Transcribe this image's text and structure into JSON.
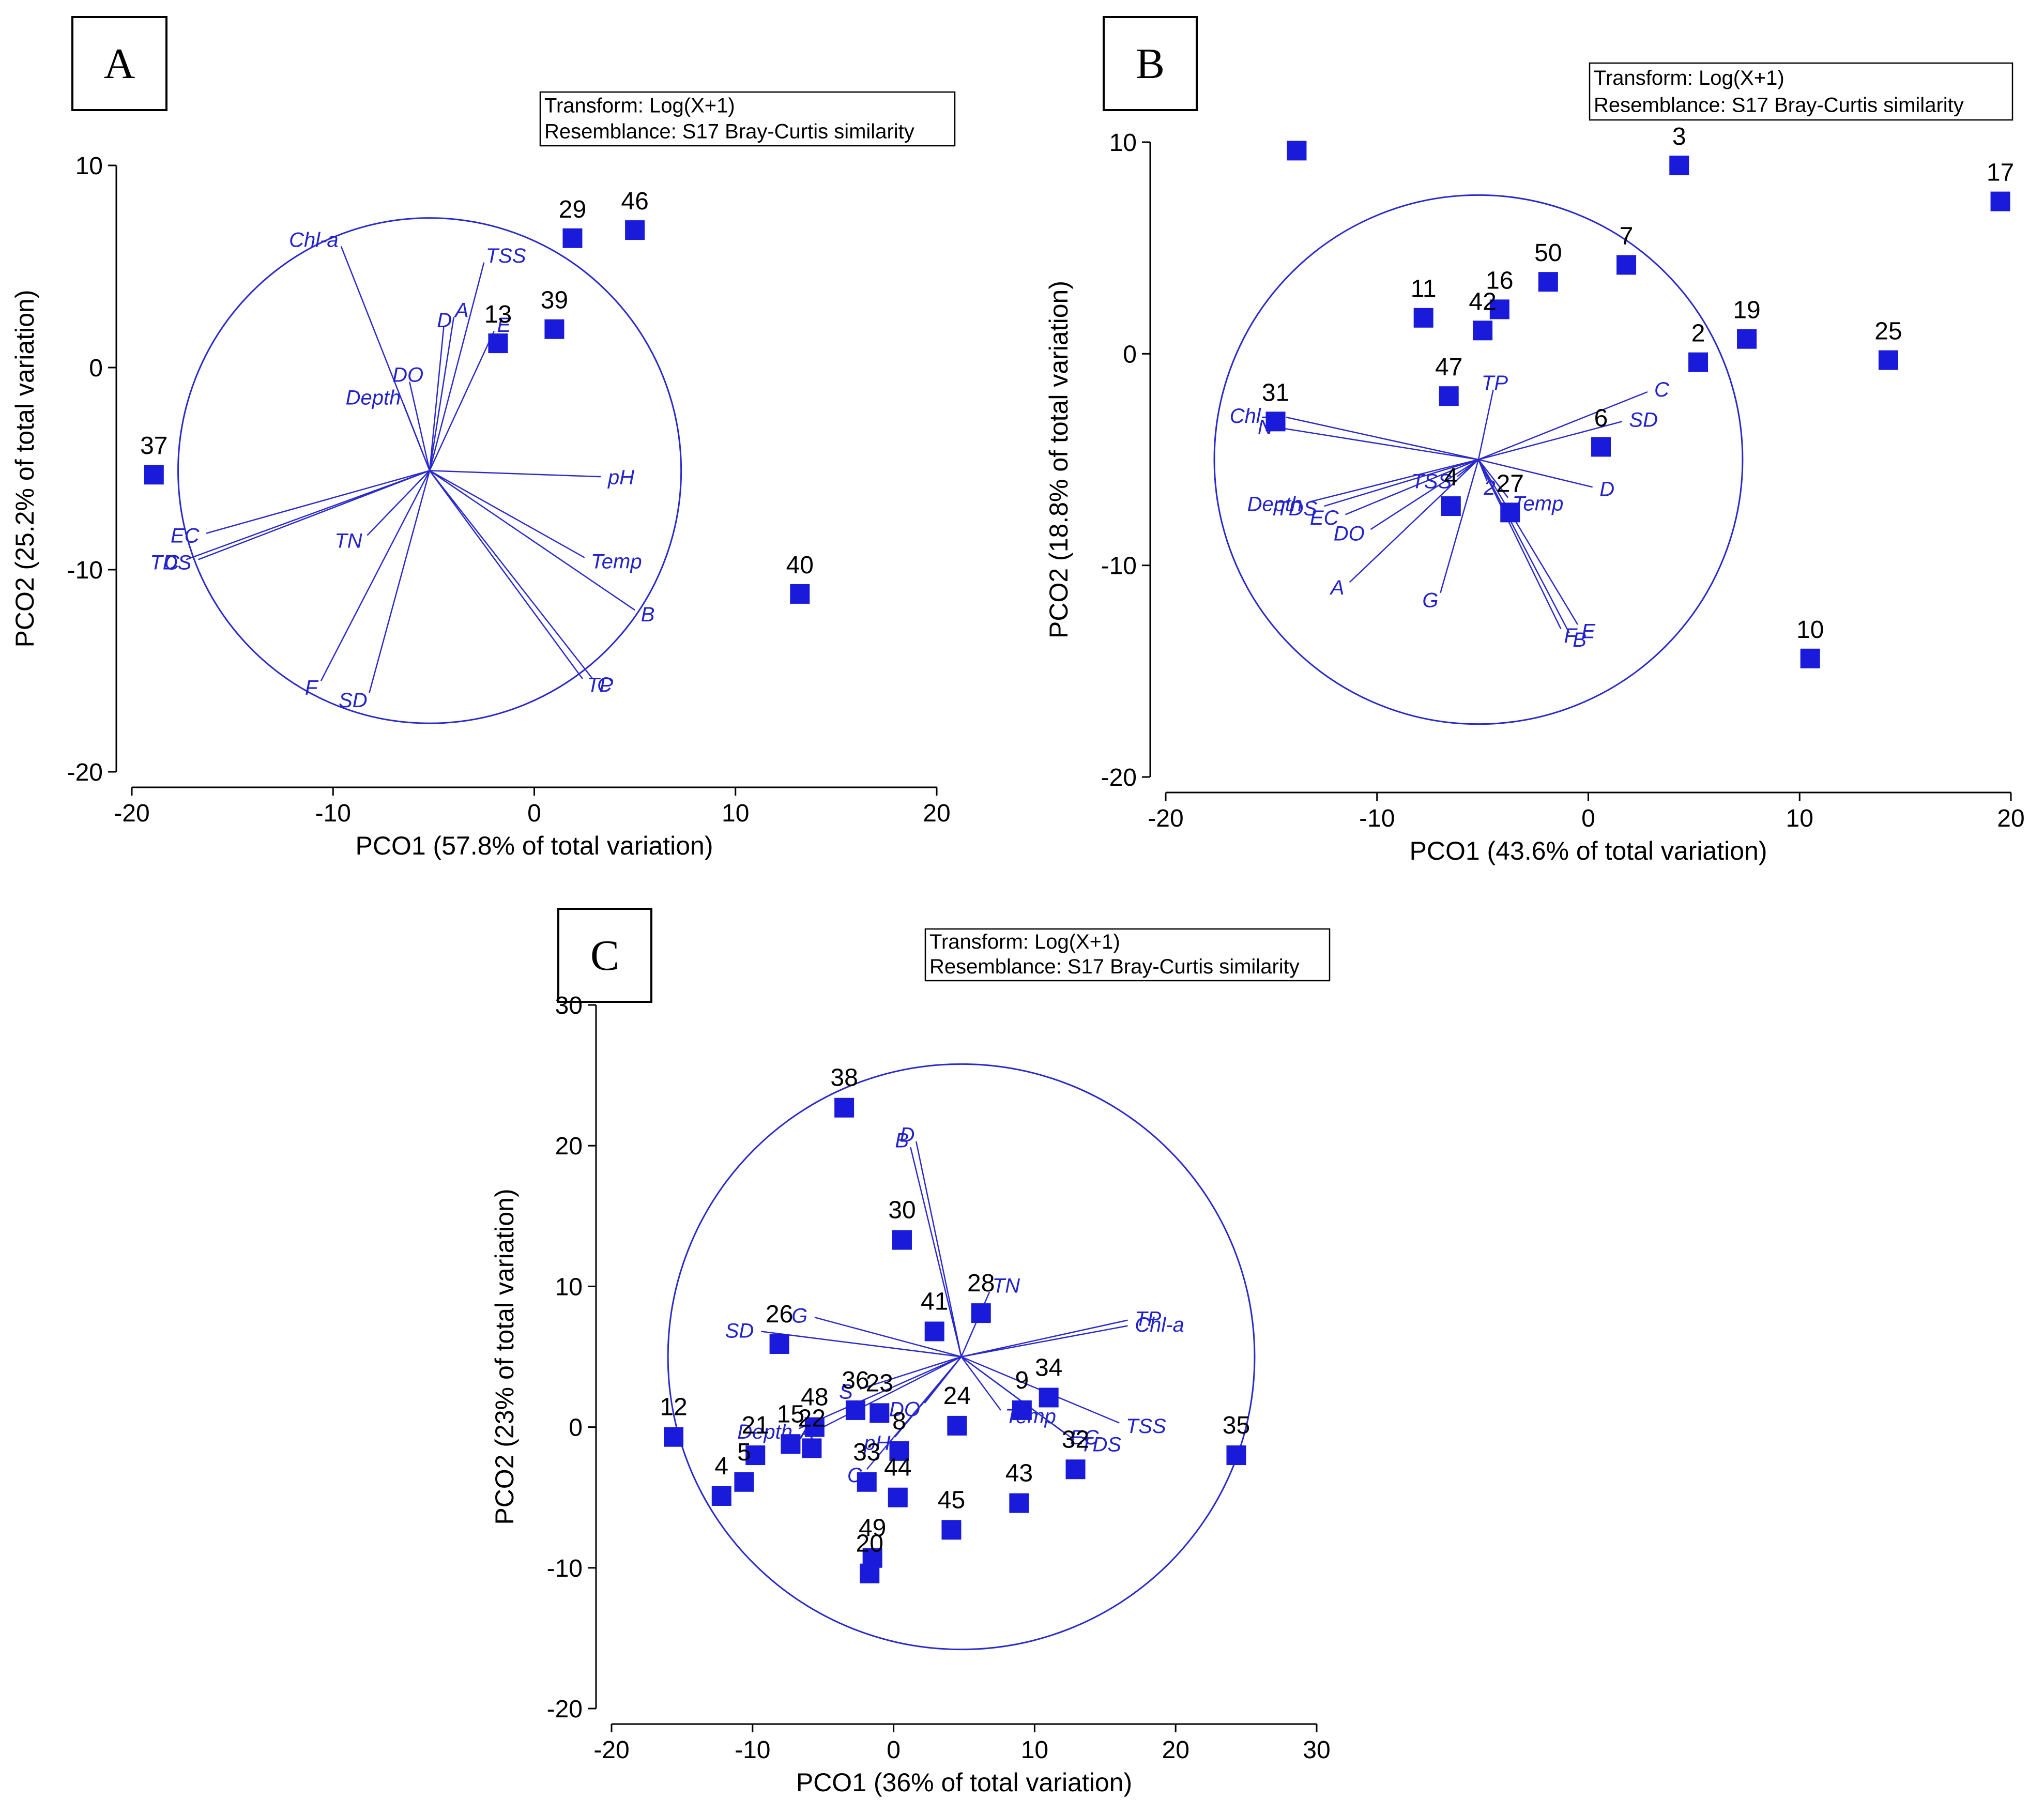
{
  "colors": {
    "points": "#1a1adb",
    "vectors": "#2a2acc",
    "axis": "#000000"
  },
  "chart_data": [
    {
      "type": "scatter",
      "panel": "A",
      "transform": "Transform: Log(X+1)",
      "resemblance": "Resemblance: S17 Bray-Curtis similarity",
      "xlabel": "PCO1 (57.8% of total variation)",
      "ylabel": "PCO2 (25.2% of total variation)",
      "xlim": [
        -20,
        20
      ],
      "ylim": [
        -20,
        10
      ],
      "xticks": [
        -20,
        -10,
        0,
        10,
        20
      ],
      "yticks": [
        -20,
        -10,
        0,
        10
      ],
      "xtick_labels": [
        "-20",
        "-10",
        "0",
        "10",
        "20"
      ],
      "ytick_labels": [
        "-20",
        "-10",
        "0",
        "10"
      ],
      "circle": {
        "center": [
          -5.2,
          -5.1
        ],
        "radius": 12.5
      },
      "points": [
        {
          "label": "29",
          "x": 1.9,
          "y": 6.4
        },
        {
          "label": "46",
          "x": 5.0,
          "y": 6.8
        },
        {
          "label": "13",
          "x": -1.8,
          "y": 1.2
        },
        {
          "label": "39",
          "x": 1.0,
          "y": 1.9
        },
        {
          "label": "37",
          "x": -18.9,
          "y": -5.3
        },
        {
          "label": "40",
          "x": 13.2,
          "y": -11.2
        }
      ],
      "vectors": [
        {
          "label": "Chl-a",
          "x": -9.6,
          "y": 6.0
        },
        {
          "label": "TSS",
          "x": -2.5,
          "y": 5.2
        },
        {
          "label": "A",
          "x": -4.0,
          "y": 2.5
        },
        {
          "label": "D",
          "x": -4.5,
          "y": 2.0
        },
        {
          "label": "E",
          "x": -2.0,
          "y": 1.8
        },
        {
          "label": "DO",
          "x": -6.2,
          "y": -0.7
        },
        {
          "label": "Depth",
          "x": -6.5,
          "y": -1.8
        },
        {
          "label": "pH",
          "x": 3.3,
          "y": -5.4
        },
        {
          "label": "EC",
          "x": -16.3,
          "y": -8.2
        },
        {
          "label": "C",
          "x": -17.3,
          "y": -9.5
        },
        {
          "label": "TDS",
          "x": -16.7,
          "y": -9.5
        },
        {
          "label": "TN",
          "x": -8.3,
          "y": -8.3
        },
        {
          "label": "Temp",
          "x": 2.5,
          "y": -9.4
        },
        {
          "label": "B",
          "x": 5.0,
          "y": -12.0
        },
        {
          "label": "C",
          "x": 2.9,
          "y": -15.4
        },
        {
          "label": "TP",
          "x": 2.4,
          "y": -15.4
        },
        {
          "label": "F",
          "x": -10.6,
          "y": -15.5
        },
        {
          "label": "SD",
          "x": -8.2,
          "y": -16.1
        }
      ]
    },
    {
      "type": "scatter",
      "panel": "B",
      "transform": "Transform: Log(X+1)",
      "resemblance": "Resemblance: S17 Bray-Curtis similarity",
      "xlabel": "PCO1 (43.6% of total variation)",
      "ylabel": "PCO2 (18.8% of total variation)",
      "xlim": [
        -20,
        20
      ],
      "ylim": [
        -20,
        10
      ],
      "xticks": [
        -20,
        -10,
        0,
        10,
        20
      ],
      "yticks": [
        -20,
        -10,
        0,
        10
      ],
      "xtick_labels": [
        "-20",
        "-10",
        "0",
        "10",
        "20"
      ],
      "ytick_labels": [
        "-20",
        "-10",
        "0",
        "10"
      ],
      "circle": {
        "center": [
          -5.2,
          -5.0
        ],
        "radius": 12.5
      },
      "points": [
        {
          "label": "",
          "x": -13.8,
          "y": 9.6
        },
        {
          "label": "3",
          "x": 4.3,
          "y": 8.9
        },
        {
          "label": "17",
          "x": 19.5,
          "y": 7.2
        },
        {
          "label": "50",
          "x": -1.9,
          "y": 3.4
        },
        {
          "label": "7",
          "x": 1.8,
          "y": 4.2
        },
        {
          "label": "11",
          "x": -7.8,
          "y": 1.7
        },
        {
          "label": "16",
          "x": -4.2,
          "y": 2.1
        },
        {
          "label": "42",
          "x": -5.0,
          "y": 1.1
        },
        {
          "label": "19",
          "x": 7.5,
          "y": 0.7
        },
        {
          "label": "2",
          "x": 5.2,
          "y": -0.4
        },
        {
          "label": "25",
          "x": 14.2,
          "y": -0.3
        },
        {
          "label": "47",
          "x": -6.6,
          "y": -2.0
        },
        {
          "label": "31",
          "x": -14.8,
          "y": -3.2
        },
        {
          "label": "6",
          "x": 0.6,
          "y": -4.4
        },
        {
          "label": "4",
          "x": -6.5,
          "y": -7.2
        },
        {
          "label": "27",
          "x": -3.7,
          "y": -7.5
        },
        {
          "label": "10",
          "x": 10.5,
          "y": -14.4
        }
      ],
      "vectors": [
        {
          "label": "Chl-a",
          "x": -14.3,
          "y": -3.0
        },
        {
          "label": "N",
          "x": -14.6,
          "y": -3.5
        },
        {
          "label": "TP",
          "x": -4.5,
          "y": -1.7
        },
        {
          "label": "C",
          "x": 2.8,
          "y": -1.8
        },
        {
          "label": "SD",
          "x": 1.6,
          "y": -3.2
        },
        {
          "label": "D",
          "x": 0.2,
          "y": -6.3
        },
        {
          "label": "TSS",
          "x": -6.2,
          "y": -5.8
        },
        {
          "label": "2",
          "x": -4.8,
          "y": -6.0
        },
        {
          "label": "Temp",
          "x": -3.8,
          "y": -6.8
        },
        {
          "label": "Depth",
          "x": -13.2,
          "y": -7.0
        },
        {
          "label": "TDS",
          "x": -12.5,
          "y": -7.2
        },
        {
          "label": "EC",
          "x": -11.5,
          "y": -7.6
        },
        {
          "label": "DO",
          "x": -10.3,
          "y": -8.3
        },
        {
          "label": "A",
          "x": -11.3,
          "y": -10.8
        },
        {
          "label": "G",
          "x": -7.0,
          "y": -11.3
        },
        {
          "label": "E",
          "x": -0.5,
          "y": -12.8
        },
        {
          "label": "F",
          "x": -1.3,
          "y": -13.0
        },
        {
          "label": "B",
          "x": -0.9,
          "y": -13.2
        }
      ]
    },
    {
      "type": "scatter",
      "panel": "C",
      "transform": "Transform: Log(X+1)",
      "resemblance": "Resemblance: S17 Bray-Curtis similarity",
      "xlabel": "PCO1 (36% of total variation)",
      "ylabel": "PCO2 (23% of total variation)",
      "xlim": [
        -20,
        30
      ],
      "ylim": [
        -20,
        30
      ],
      "xticks": [
        -20,
        -10,
        0,
        10,
        20,
        30
      ],
      "yticks": [
        -20,
        -10,
        0,
        10,
        20,
        30
      ],
      "xtick_labels": [
        "-20",
        "-10",
        "0",
        "10",
        "20",
        "30"
      ],
      "ytick_labels": [
        "-20",
        "-10",
        "0",
        "10",
        "20",
        "30"
      ],
      "circle": {
        "center": [
          4.8,
          5.0
        ],
        "radius": 20.8
      },
      "points": [
        {
          "label": "38",
          "x": -3.5,
          "y": 22.7
        },
        {
          "label": "30",
          "x": 0.6,
          "y": 13.3
        },
        {
          "label": "28",
          "x": 6.2,
          "y": 8.1
        },
        {
          "label": "41",
          "x": 2.9,
          "y": 6.8
        },
        {
          "label": "26",
          "x": -8.1,
          "y": 5.9
        },
        {
          "label": "36",
          "x": -2.7,
          "y": 1.2
        },
        {
          "label": "23",
          "x": -1.0,
          "y": 1.0
        },
        {
          "label": "48",
          "x": -5.6,
          "y": 0.0
        },
        {
          "label": "12",
          "x": -15.6,
          "y": -0.7
        },
        {
          "label": "21",
          "x": -9.8,
          "y": -2.0
        },
        {
          "label": "15",
          "x": -7.3,
          "y": -1.2
        },
        {
          "label": "22",
          "x": -5.8,
          "y": -1.5
        },
        {
          "label": "5",
          "x": -10.6,
          "y": -3.9
        },
        {
          "label": "4",
          "x": -12.2,
          "y": -4.9
        },
        {
          "label": "8",
          "x": 0.4,
          "y": -1.7
        },
        {
          "label": "24",
          "x": 4.5,
          "y": 0.1
        },
        {
          "label": "9",
          "x": 9.1,
          "y": 1.2
        },
        {
          "label": "34",
          "x": 11.0,
          "y": 2.1
        },
        {
          "label": "35",
          "x": 24.3,
          "y": -2.0
        },
        {
          "label": "32",
          "x": 12.9,
          "y": -3.0
        },
        {
          "label": "33",
          "x": -1.9,
          "y": -3.9
        },
        {
          "label": "44",
          "x": 0.3,
          "y": -5.0
        },
        {
          "label": "45",
          "x": 4.1,
          "y": -7.3
        },
        {
          "label": "43",
          "x": 8.9,
          "y": -5.4
        },
        {
          "label": "49",
          "x": -1.5,
          "y": -9.3
        },
        {
          "label": "20",
          "x": -1.7,
          "y": -10.4
        }
      ],
      "vectors": [
        {
          "label": "D",
          "x": 1.6,
          "y": 20.3
        },
        {
          "label": "B",
          "x": 1.2,
          "y": 19.9
        },
        {
          "label": "TN",
          "x": 6.8,
          "y": 9.6
        },
        {
          "label": "G",
          "x": -5.6,
          "y": 7.8
        },
        {
          "label": "SD",
          "x": -9.4,
          "y": 6.8
        },
        {
          "label": "TP",
          "x": 16.6,
          "y": 7.6
        },
        {
          "label": "Chl-a",
          "x": 16.6,
          "y": 7.2
        },
        {
          "label": "S",
          "x": -2.4,
          "y": 2.7
        },
        {
          "label": "DO",
          "x": 2.2,
          "y": 1.7
        },
        {
          "label": "Temp",
          "x": 7.6,
          "y": 1.2
        },
        {
          "label": "TSS",
          "x": 16.0,
          "y": 0.3
        },
        {
          "label": "EC",
          "x": 12.1,
          "y": -0.4
        },
        {
          "label": "TDS",
          "x": 12.8,
          "y": -0.9
        },
        {
          "label": "Depth",
          "x": -6.7,
          "y": -0.1
        },
        {
          "label": "A",
          "x": -5.2,
          "y": -0.1
        },
        {
          "label": "pH",
          "x": 0.1,
          "y": -0.7
        },
        {
          "label": "C",
          "x": -1.9,
          "y": -3.0
        }
      ]
    }
  ]
}
